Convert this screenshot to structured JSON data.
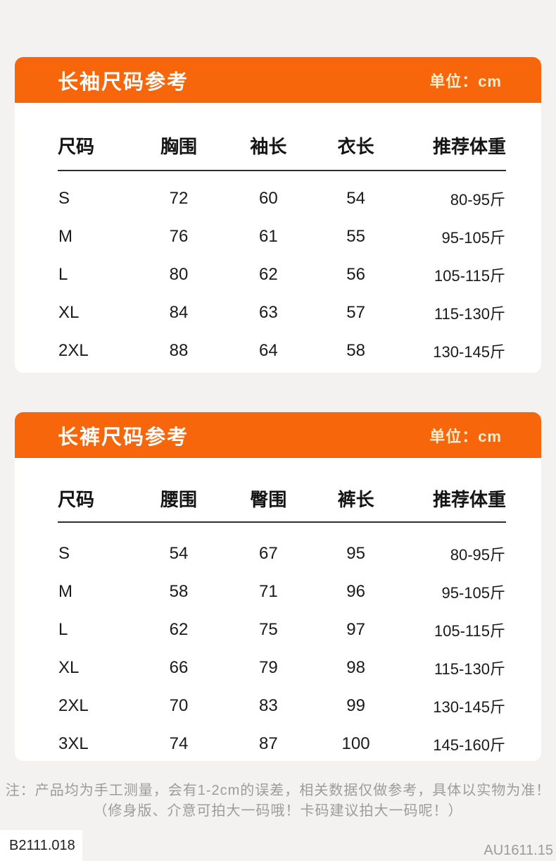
{
  "page": {
    "background_color": "#F3F2F0",
    "accent_color": "#F7660A",
    "card_color": "#FFFFFF",
    "note_text_color": "#9C9C9C"
  },
  "chart_data": [
    {
      "type": "table",
      "title": "长袖尺码参考",
      "unit": "单位：cm",
      "columns": [
        "尺码",
        "胸围",
        "袖长",
        "衣长",
        "推荐体重"
      ],
      "rows": [
        [
          "S",
          "72",
          "60",
          "54",
          "80-95斤"
        ],
        [
          "M",
          "76",
          "61",
          "55",
          "95-105斤"
        ],
        [
          "L",
          "80",
          "62",
          "56",
          "105-115斤"
        ],
        [
          "XL",
          "84",
          "63",
          "57",
          "115-130斤"
        ],
        [
          "2XL",
          "88",
          "64",
          "58",
          "130-145斤"
        ]
      ]
    },
    {
      "type": "table",
      "title": "长裤尺码参考",
      "unit": "单位：cm",
      "columns": [
        "尺码",
        "腰围",
        "臀围",
        "裤长",
        "推荐体重"
      ],
      "rows": [
        [
          "S",
          "54",
          "67",
          "95",
          "80-95斤"
        ],
        [
          "M",
          "58",
          "71",
          "96",
          "95-105斤"
        ],
        [
          "L",
          "62",
          "75",
          "97",
          "105-115斤"
        ],
        [
          "XL",
          "66",
          "79",
          "98",
          "115-130斤"
        ],
        [
          "2XL",
          "70",
          "83",
          "99",
          "130-145斤"
        ],
        [
          "3XL",
          "74",
          "87",
          "100",
          "145-160斤"
        ]
      ]
    }
  ],
  "note": {
    "line1": "注：产品均为手工测量，会有1-2cm的误差，相关数据仅做参考，具体以实物为准！",
    "line2": "（修身版、介意可拍大一码哦！卡码建议拍大一码呢！）"
  },
  "footer": {
    "left_code": "B2111.018",
    "right_code": "AU1611.15"
  }
}
